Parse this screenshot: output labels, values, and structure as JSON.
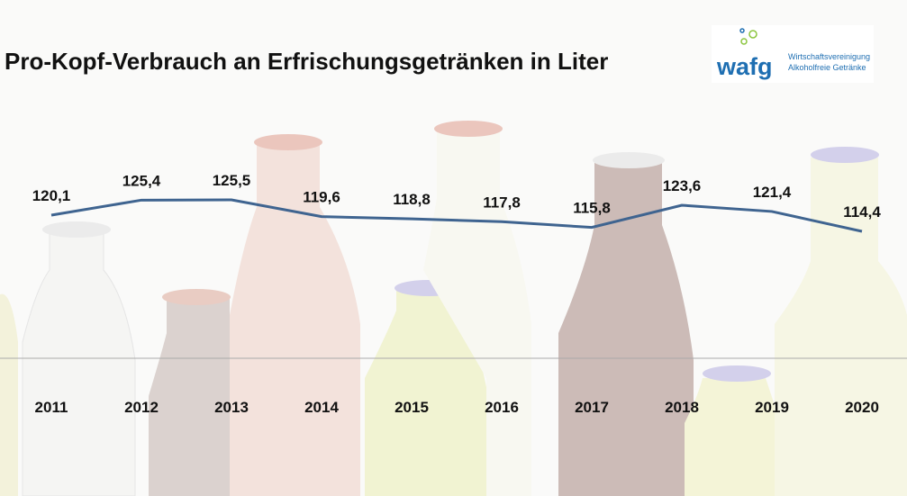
{
  "chart_data": {
    "type": "line",
    "title": "Pro-Kopf-Verbrauch an Erfrischungsgetränken in Liter",
    "categories": [
      "2011",
      "2012",
      "2013",
      "2014",
      "2015",
      "2016",
      "2017",
      "2018",
      "2019",
      "2020"
    ],
    "values": [
      120.1,
      125.4,
      125.5,
      119.6,
      118.8,
      117.8,
      115.8,
      123.6,
      121.4,
      114.4
    ],
    "value_labels": [
      "120,1",
      "125,4",
      "125,5",
      "119,6",
      "118,8",
      "117,8",
      "115,8",
      "123,6",
      "121,4",
      "114,4"
    ],
    "color": "#3f6490"
  },
  "logo": {
    "name": "wafg",
    "line1": "Wirtschaftsvereinigung",
    "line2": "Alkoholfreie Getränke"
  }
}
